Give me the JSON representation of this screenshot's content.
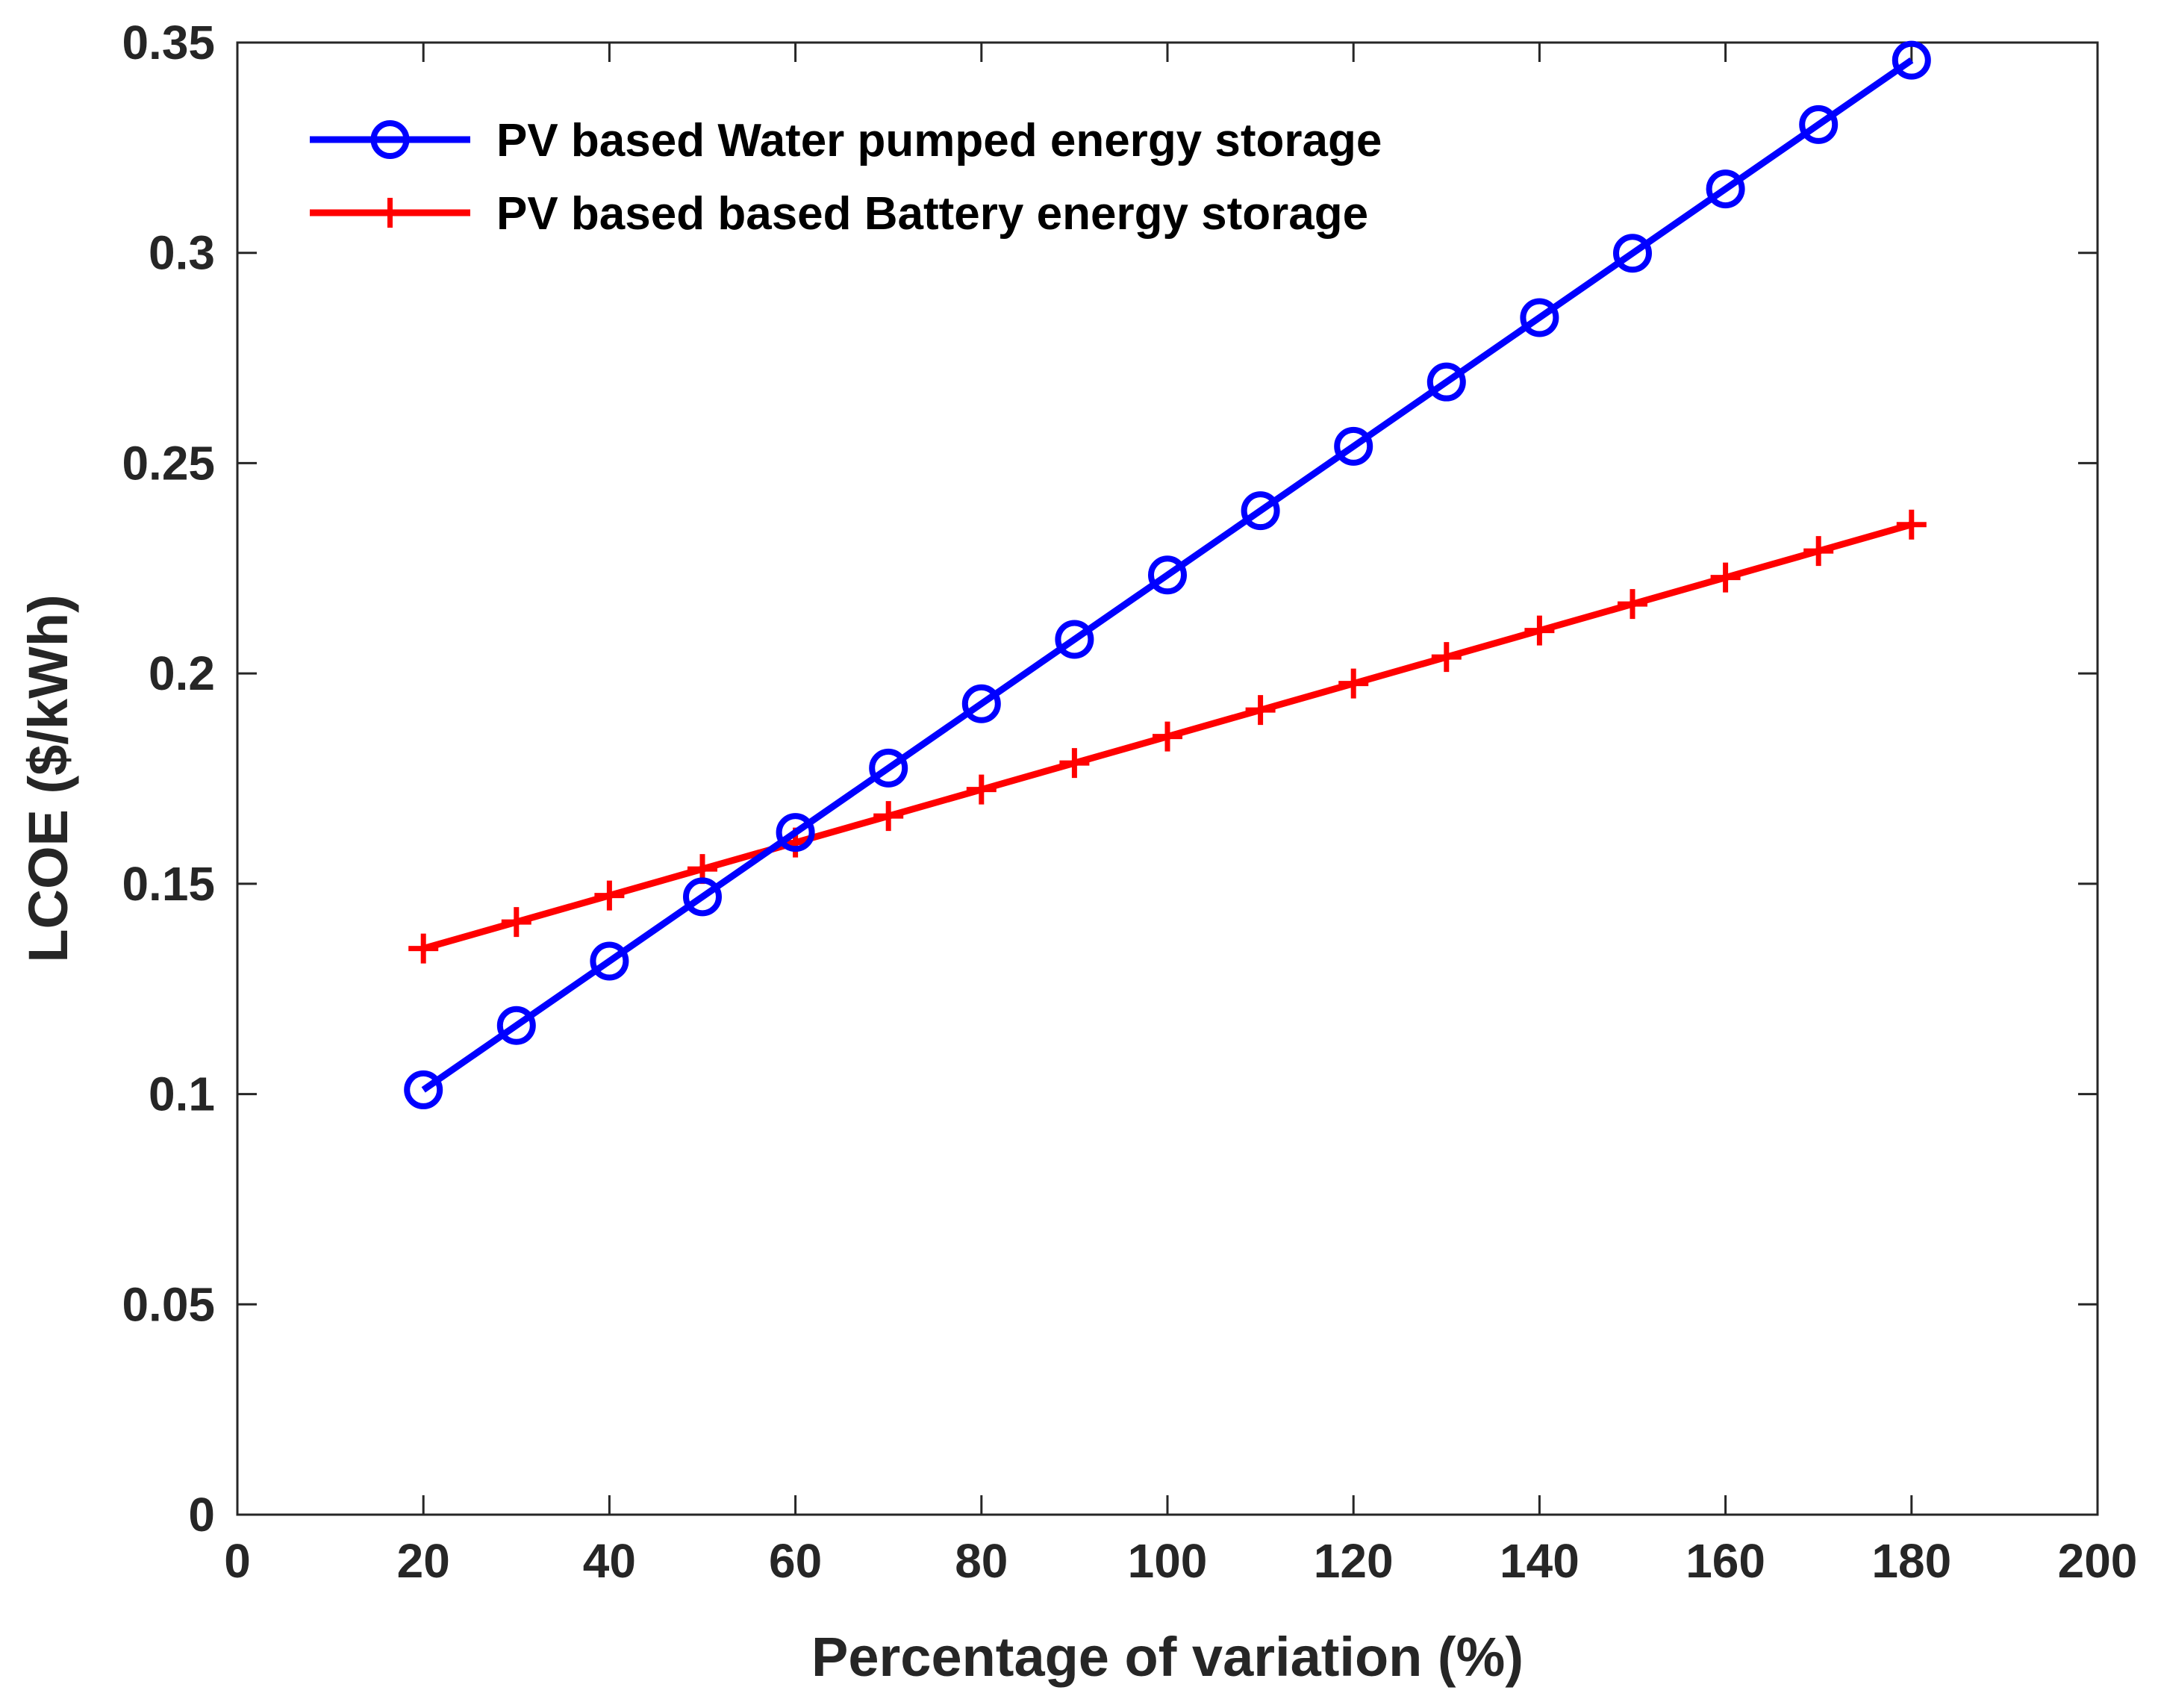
{
  "chart_data": {
    "type": "line",
    "title": "",
    "xlabel": "Percentage of variation (%)",
    "ylabel": "LCOE ($/kWh)",
    "xlim": [
      0,
      200
    ],
    "ylim": [
      0,
      0.35
    ],
    "xticks": [
      0,
      20,
      40,
      60,
      80,
      100,
      120,
      140,
      160,
      180,
      200
    ],
    "xtick_labels": [
      "0",
      "20",
      "40",
      "60",
      "80",
      "100",
      "120",
      "140",
      "160",
      "180",
      "200"
    ],
    "yticks": [
      0,
      0.05,
      0.1,
      0.15,
      0.2,
      0.25,
      0.3,
      0.35
    ],
    "ytick_labels": [
      "0",
      "0.05",
      "0.1",
      "0.15",
      "0.2",
      "0.25",
      "0.3",
      "0.35"
    ],
    "grid": false,
    "legend_position": "top-left",
    "x": [
      20,
      30,
      40,
      50,
      60,
      70,
      80,
      90,
      100,
      110,
      120,
      130,
      140,
      150,
      160,
      170,
      180
    ],
    "series": [
      {
        "name": "PV based Water pumped energy storage",
        "color": "#0000ff",
        "marker": "circle",
        "values": [
          0.101,
          0.1163,
          0.1316,
          0.1469,
          0.1622,
          0.1775,
          0.1928,
          0.2081,
          0.2234,
          0.2387,
          0.254,
          0.2693,
          0.2846,
          0.2999,
          0.3152,
          0.3305,
          0.3458
        ]
      },
      {
        "name": "PV based based Battery energy storage",
        "color": "#ff0000",
        "marker": "plus",
        "values": [
          0.1346,
          0.1409,
          0.1472,
          0.1535,
          0.1598,
          0.1661,
          0.1724,
          0.1787,
          0.185,
          0.1913,
          0.1976,
          0.2039,
          0.2102,
          0.2165,
          0.2228,
          0.2291,
          0.2354
        ]
      }
    ]
  }
}
